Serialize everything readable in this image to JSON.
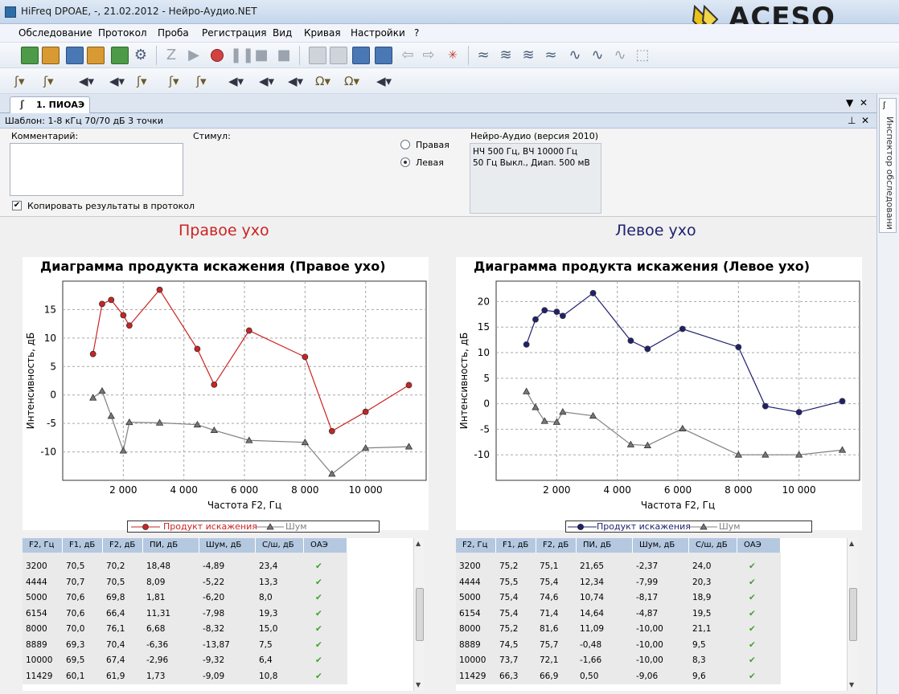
{
  "window": {
    "title": "HiFreq DPOAE, -, 21.02.2012 - Нейро-Аудио.NET",
    "logo_text": "ACESO"
  },
  "menu": [
    "Обследование",
    "Протокол",
    "Проба",
    "Регистрация",
    "Вид",
    "Кривая",
    "Настройки",
    "?"
  ],
  "tab": {
    "label": "1. ПИОАЭ"
  },
  "template": {
    "label": "Шаблон: 1-8 кГц 70/70 дБ 3 точки"
  },
  "inspector": {
    "label": "Инспектор обследовани"
  },
  "settings": {
    "comment_label": "Комментарий:",
    "comment_value": "",
    "stimulus_label": "Стимул:",
    "copy_results_label": "Копировать результаты в протокол",
    "copy_results_checked": true,
    "ear_options": [
      "Правая",
      "Левая"
    ],
    "selected_ear": "Левая",
    "device_title": "Нейро-Аудио (версия 2010)",
    "device_line1": "НЧ  500 Гц, ВЧ  10000 Гц",
    "device_line2": "50 Гц  Выкл., Диап. 500 мВ"
  },
  "colors": {
    "right": "#cc2222",
    "left": "#202070",
    "noise": "#808080"
  },
  "panels": {
    "right": {
      "heading": "Правое ухо",
      "chart_title": "Диаграмма продукта искажения (Правое ухо)",
      "legend_dp": "Продукт искажения",
      "legend_noise": "Шум"
    },
    "left": {
      "heading": "Левое ухо",
      "chart_title": "Диаграмма продукта искажения (Левое ухо)",
      "legend_dp": "Продукт искажения",
      "legend_noise": "Шум"
    }
  },
  "chart_data": [
    {
      "type": "line",
      "title": "Диаграмма продукта искажения (Правое ухо)",
      "xlabel": "Частота F2, Гц",
      "ylabel": "Интенсивность, дБ",
      "xlim": [
        0,
        12000
      ],
      "ylim": [
        -15,
        20
      ],
      "xticks": [
        2000,
        4000,
        6000,
        8000,
        10000
      ],
      "xtick_labels": [
        "2 000",
        "4 000",
        "6 000",
        "8 000",
        "10 000"
      ],
      "yticks": [
        -10,
        -5,
        0,
        5,
        10,
        15
      ],
      "grid": true,
      "legend": "bottom",
      "series": [
        {
          "name": "Продукт искажения",
          "color": "#cc2222",
          "x": [
            1000,
            1300,
            1600,
            2000,
            2200,
            3200,
            4444,
            5000,
            6154,
            8000,
            8889,
            10000,
            11429
          ],
          "y": [
            7.2,
            16,
            16.7,
            14,
            12.2,
            18.48,
            8.09,
            1.81,
            11.31,
            6.68,
            -6.36,
            -2.96,
            1.73
          ]
        },
        {
          "name": "Шум",
          "color": "#808080",
          "x": [
            1000,
            1300,
            1600,
            2000,
            2200,
            3200,
            4444,
            5000,
            6154,
            8000,
            8889,
            10000,
            11429
          ],
          "y": [
            -0.5,
            0.7,
            -3.7,
            -9.8,
            -4.8,
            -4.89,
            -5.22,
            -6.2,
            -7.98,
            -8.32,
            -13.87,
            -9.32,
            -9.09
          ]
        }
      ]
    },
    {
      "type": "line",
      "title": "Диаграмма продукта искажения (Левое ухо)",
      "xlabel": "Частота F2, Гц",
      "ylabel": "Интенсивность, дБ",
      "xlim": [
        0,
        12000
      ],
      "ylim": [
        -15,
        24
      ],
      "xticks": [
        2000,
        4000,
        6000,
        8000,
        10000
      ],
      "xtick_labels": [
        "2 000",
        "4 000",
        "6 000",
        "8 000",
        "10 000"
      ],
      "yticks": [
        -10,
        -5,
        0,
        5,
        10,
        15,
        20
      ],
      "grid": true,
      "legend": "bottom",
      "series": [
        {
          "name": "Продукт искажения",
          "color": "#202070",
          "x": [
            1000,
            1300,
            1600,
            2000,
            2200,
            3200,
            4444,
            5000,
            6154,
            8000,
            8889,
            10000,
            11429
          ],
          "y": [
            11.6,
            16.5,
            18.3,
            18.0,
            17.2,
            21.65,
            12.34,
            10.74,
            14.64,
            11.09,
            -0.48,
            -1.66,
            0.5
          ]
        },
        {
          "name": "Шум",
          "color": "#808080",
          "x": [
            1000,
            1300,
            1600,
            2000,
            2200,
            3200,
            4444,
            5000,
            6154,
            8000,
            8889,
            10000,
            11429
          ],
          "y": [
            2.4,
            -0.7,
            -3.4,
            -3.6,
            -1.6,
            -2.37,
            -7.99,
            -8.17,
            -4.87,
            -10.0,
            -10.0,
            -10.0,
            -9.06
          ]
        }
      ]
    }
  ],
  "tables": {
    "headers": [
      "F2, Гц",
      "F1, дБ",
      "F2, дБ",
      "ПИ, дБ",
      "Шум, дБ",
      "С/ш, дБ",
      "ОАЭ"
    ],
    "right": [
      [
        "3200",
        "70,5",
        "70,2",
        "18,48",
        "-4,89",
        "23,4"
      ],
      [
        "4444",
        "70,7",
        "70,5",
        "8,09",
        "-5,22",
        "13,3"
      ],
      [
        "5000",
        "70,6",
        "69,8",
        "1,81",
        "-6,20",
        "8,0"
      ],
      [
        "6154",
        "70,6",
        "66,4",
        "11,31",
        "-7,98",
        "19,3"
      ],
      [
        "8000",
        "70,0",
        "76,1",
        "6,68",
        "-8,32",
        "15,0"
      ],
      [
        "8889",
        "69,3",
        "70,4",
        "-6,36",
        "-13,87",
        "7,5"
      ],
      [
        "10000",
        "69,5",
        "67,4",
        "-2,96",
        "-9,32",
        "6,4"
      ],
      [
        "11429",
        "60,1",
        "61,9",
        "1,73",
        "-9,09",
        "10,8"
      ]
    ],
    "left": [
      [
        "3200",
        "75,2",
        "75,1",
        "21,65",
        "-2,37",
        "24,0"
      ],
      [
        "4444",
        "75,5",
        "75,4",
        "12,34",
        "-7,99",
        "20,3"
      ],
      [
        "5000",
        "75,4",
        "74,6",
        "10,74",
        "-8,17",
        "18,9"
      ],
      [
        "6154",
        "75,4",
        "71,4",
        "14,64",
        "-4,87",
        "19,5"
      ],
      [
        "8000",
        "75,2",
        "81,6",
        "11,09",
        "-10,00",
        "21,1"
      ],
      [
        "8889",
        "74,5",
        "75,7",
        "-0,48",
        "-10,00",
        "9,5"
      ],
      [
        "10000",
        "73,7",
        "72,1",
        "-1,66",
        "-10,00",
        "8,3"
      ],
      [
        "11429",
        "66,3",
        "66,9",
        "0,50",
        "-9,06",
        "9,6"
      ]
    ],
    "check_glyph": "✔"
  }
}
